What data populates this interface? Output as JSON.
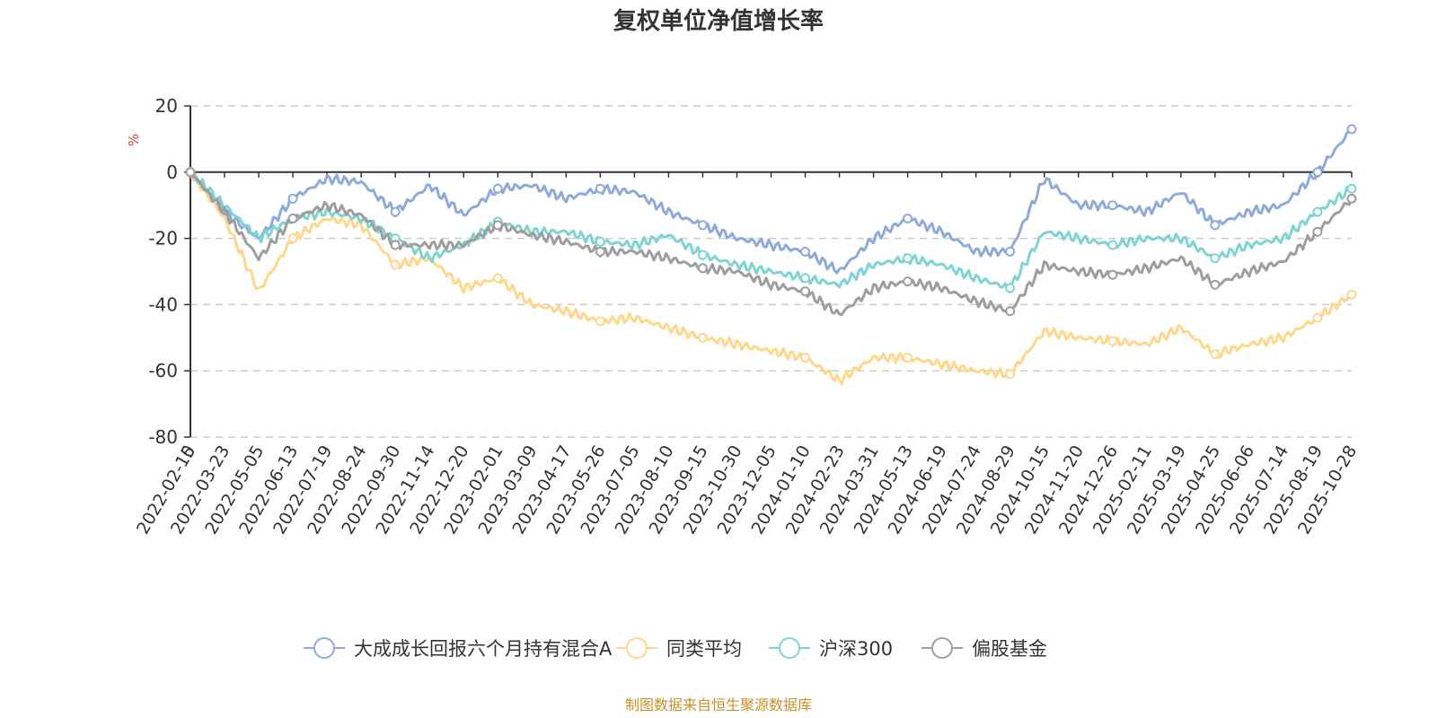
{
  "chart_data": {
    "type": "line",
    "title": "复权单位净值增长率",
    "ylabel": "%",
    "ylim": [
      -80,
      20
    ],
    "yticks": [
      "20",
      "0",
      "-20",
      "-40",
      "-60",
      "-80"
    ],
    "ytick_values": [
      20,
      0,
      -20,
      -40,
      -60,
      -80
    ],
    "x_origin_label": "0",
    "categories": [
      "2022-02-15",
      "2022-03-23",
      "2022-05-05",
      "2022-06-13",
      "2022-07-19",
      "2022-08-24",
      "2022-09-30",
      "2022-11-14",
      "2022-12-20",
      "2023-02-01",
      "2023-03-09",
      "2023-04-17",
      "2023-05-26",
      "2023-07-05",
      "2023-08-10",
      "2023-09-15",
      "2023-10-30",
      "2023-12-05",
      "2024-01-10",
      "2024-02-23",
      "2024-03-31",
      "2024-05-13",
      "2024-06-19",
      "2024-07-24",
      "2024-08-29",
      "2024-10-15",
      "2024-11-20",
      "2024-12-26",
      "2025-02-11",
      "2025-03-19",
      "2025-04-25",
      "2025-06-06",
      "2025-07-14",
      "2025-08-19",
      "2025-10-28"
    ],
    "series": [
      {
        "name": "大成成长回报六个月持有混合A",
        "color": "#8eaadb",
        "values": [
          0,
          -12,
          -20,
          -8,
          -2,
          -3,
          -12,
          -4,
          -13,
          -5,
          -4,
          -8,
          -5,
          -6,
          -12,
          -16,
          -20,
          -22,
          -24,
          -30,
          -20,
          -14,
          -18,
          -24,
          -24,
          -2,
          -10,
          -10,
          -12,
          -6,
          -16,
          -12,
          -10,
          0,
          13
        ]
      },
      {
        "name": "同类平均",
        "color": "#ffd68a",
        "values": [
          0,
          -14,
          -36,
          -20,
          -14,
          -16,
          -28,
          -26,
          -35,
          -32,
          -40,
          -42,
          -45,
          -44,
          -47,
          -50,
          -52,
          -54,
          -56,
          -63,
          -56,
          -56,
          -58,
          -60,
          -61,
          -48,
          -50,
          -51,
          -52,
          -47,
          -55,
          -52,
          -50,
          -44,
          -37
        ]
      },
      {
        "name": "沪深300",
        "color": "#7fd3d3",
        "values": [
          0,
          -10,
          -20,
          -14,
          -12,
          -14,
          -20,
          -26,
          -22,
          -15,
          -18,
          -18,
          -21,
          -22,
          -19,
          -25,
          -28,
          -30,
          -32,
          -34,
          -28,
          -26,
          -28,
          -32,
          -35,
          -18,
          -20,
          -22,
          -20,
          -20,
          -26,
          -22,
          -20,
          -12,
          -5
        ]
      },
      {
        "name": "偏股基金",
        "color": "#9e9e9e",
        "values": [
          0,
          -12,
          -26,
          -14,
          -10,
          -13,
          -22,
          -22,
          -22,
          -16,
          -19,
          -21,
          -24,
          -24,
          -26,
          -29,
          -30,
          -34,
          -36,
          -43,
          -35,
          -33,
          -35,
          -39,
          -42,
          -28,
          -30,
          -31,
          -29,
          -26,
          -34,
          -30,
          -27,
          -18,
          -8
        ]
      }
    ]
  },
  "source_note": "制图数据来自恒生聚源数据库"
}
